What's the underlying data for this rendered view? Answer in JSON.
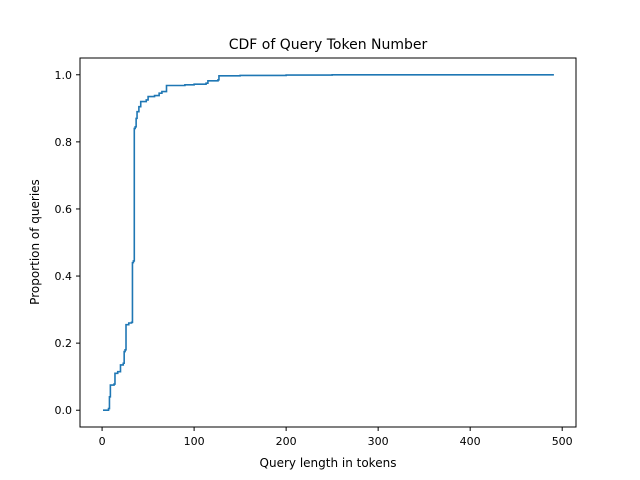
{
  "chart_data": {
    "type": "line",
    "title": "CDF of Query Token Number",
    "xlabel": "Query length in tokens",
    "ylabel": "Proportion of queries",
    "xlim": [
      -24,
      515
    ],
    "ylim": [
      -0.05,
      1.05
    ],
    "x_ticks": [
      0,
      100,
      200,
      300,
      400,
      500
    ],
    "y_ticks": [
      0.0,
      0.2,
      0.4,
      0.6,
      0.8,
      1.0
    ],
    "x_tick_labels": [
      "0",
      "100",
      "200",
      "300",
      "400",
      "500"
    ],
    "y_tick_labels": [
      "0.0",
      "0.2",
      "0.4",
      "0.6",
      "0.8",
      "1.0"
    ],
    "grid": false,
    "series": [
      {
        "color": "#1f77b4",
        "step": true,
        "points": [
          [
            1,
            0.0
          ],
          [
            7,
            0.005
          ],
          [
            8,
            0.04
          ],
          [
            9,
            0.075
          ],
          [
            13,
            0.078
          ],
          [
            14,
            0.11
          ],
          [
            17,
            0.115
          ],
          [
            20,
            0.135
          ],
          [
            23,
            0.14
          ],
          [
            24,
            0.175
          ],
          [
            25,
            0.18
          ],
          [
            26,
            0.255
          ],
          [
            29,
            0.26
          ],
          [
            32,
            0.262
          ],
          [
            33,
            0.44
          ],
          [
            34,
            0.445
          ],
          [
            35,
            0.84
          ],
          [
            36,
            0.845
          ],
          [
            37,
            0.87
          ],
          [
            38,
            0.89
          ],
          [
            40,
            0.905
          ],
          [
            42,
            0.92
          ],
          [
            48,
            0.925
          ],
          [
            50,
            0.935
          ],
          [
            57,
            0.938
          ],
          [
            62,
            0.945
          ],
          [
            65,
            0.95
          ],
          [
            70,
            0.968
          ],
          [
            90,
            0.97
          ],
          [
            100,
            0.972
          ],
          [
            113,
            0.975
          ],
          [
            115,
            0.982
          ],
          [
            126,
            0.985
          ],
          [
            127,
            0.997
          ],
          [
            150,
            0.998
          ],
          [
            200,
            0.999
          ],
          [
            250,
            1.0
          ],
          [
            491,
            1.0
          ]
        ]
      }
    ]
  }
}
